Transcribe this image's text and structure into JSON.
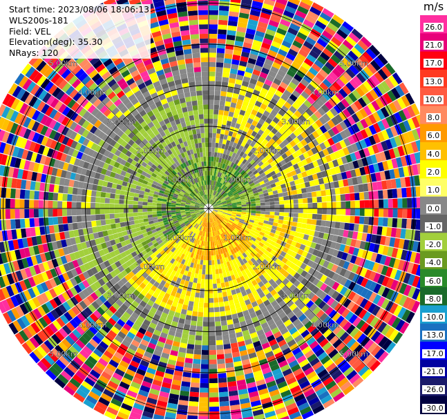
{
  "header": {
    "start_time": "Start time: 2023/08/06 18:06:13",
    "instrument": "WLS200s-181",
    "field": "Field: VEL",
    "elevation": "Elevation(deg): 35.30",
    "nrays": "NRays: 120"
  },
  "colorbar": {
    "unit": "m/s",
    "ticks": [
      "26.0",
      "21.0",
      "17.0",
      "13.0",
      "10.0",
      "8.0",
      "6.0",
      "4.0",
      "2.0",
      "1.0",
      "0.0",
      "-1.0",
      "-2.0",
      "-4.0",
      "-6.0",
      "-8.0",
      "-10.0",
      "-13.0",
      "-17.0",
      "-21.0",
      "-26.0",
      "-30.0"
    ],
    "colors": [
      "#ff2fa0",
      "#e8007a",
      "#ff0010",
      "#ff3a20",
      "#ff5a40",
      "#ff8a60",
      "#ff9a00",
      "#ffc000",
      "#ffff00",
      "#ffff66",
      "#888888",
      "#666666",
      "#a2cf3c",
      "#6a9a20",
      "#2a8a2a",
      "#1a6a2a",
      "#1aa0d0",
      "#1a70c0",
      "#0000ff",
      "#0000a0",
      "#1a1a6a",
      "#000040"
    ]
  },
  "range_rings": {
    "unit_suffix": "km",
    "labels": [
      "1.00km",
      "2.00km",
      "3.00km",
      "4.00km",
      "5.00km"
    ]
  }
}
